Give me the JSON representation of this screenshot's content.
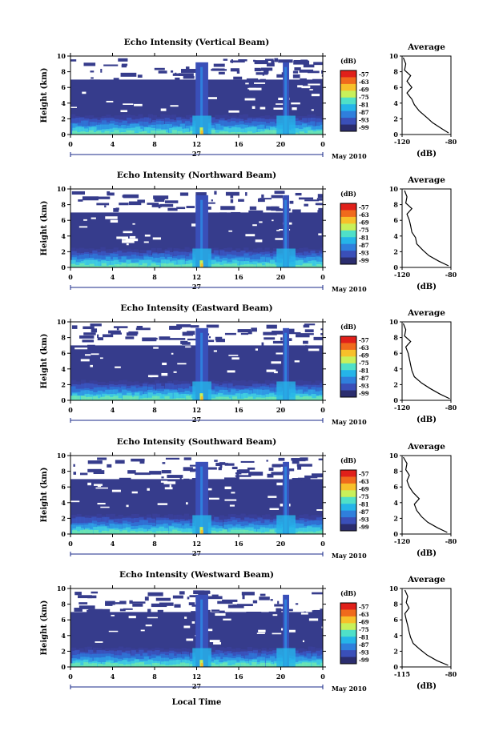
{
  "figure": {
    "x_label": "Local Time",
    "date_label": "May 2010",
    "day_label": "27",
    "y_label": "Height (km)",
    "colorbar_unit": "(dB)",
    "average_title": "Average",
    "average_xlabel": "(dB)"
  },
  "chart_data": [
    {
      "type": "heatmap",
      "title": "Echo Intensity (Vertical Beam)",
      "x": {
        "ticks": [
          "0",
          "4",
          "8",
          "12",
          "16",
          "20",
          "0"
        ],
        "range_hours": [
          0,
          24
        ]
      },
      "y": {
        "ticks": [
          "0",
          "2",
          "4",
          "6",
          "8",
          "10"
        ],
        "range_km": [
          0,
          10
        ]
      },
      "colorbar": {
        "levels": [
          "-57",
          "-63",
          "-69",
          "-75",
          "-81",
          "-87",
          "-93",
          "-99"
        ],
        "colors": [
          "#2b2d6e",
          "#3a4fb8",
          "#2f7fdc",
          "#25b4e8",
          "#4fe0c8",
          "#c8f05a",
          "#f7c02a",
          "#f06a1c",
          "#e0201a"
        ]
      },
      "average": {
        "x_ticks": [
          "-120",
          "-80"
        ],
        "xlim": [
          -120,
          -80
        ],
        "y_ticks": [
          "0",
          "2",
          "4",
          "6",
          "8",
          "10"
        ],
        "profile": [
          [
            -82,
            0.2
          ],
          [
            -88,
            0.8
          ],
          [
            -95,
            1.5
          ],
          [
            -100,
            2.2
          ],
          [
            -106,
            3.0
          ],
          [
            -110,
            3.8
          ],
          [
            -112,
            4.5
          ],
          [
            -116,
            5.3
          ],
          [
            -112,
            6.0
          ],
          [
            -116,
            6.8
          ],
          [
            -113,
            7.5
          ],
          [
            -118,
            8.2
          ],
          [
            -117,
            9.0
          ],
          [
            -119,
            9.8
          ]
        ]
      }
    },
    {
      "type": "heatmap",
      "title": "Echo Intensity (Northward Beam)",
      "x": {
        "ticks": [
          "0",
          "4",
          "8",
          "12",
          "16",
          "20",
          "0"
        ],
        "range_hours": [
          0,
          24
        ]
      },
      "y": {
        "ticks": [
          "0",
          "2",
          "4",
          "6",
          "8",
          "10"
        ],
        "range_km": [
          0,
          10
        ]
      },
      "colorbar": {
        "levels": [
          "-57",
          "-63",
          "-69",
          "-75",
          "-81",
          "-87",
          "-93",
          "-99"
        ],
        "colors": [
          "#2b2d6e",
          "#3a4fb8",
          "#2f7fdc",
          "#25b4e8",
          "#4fe0c8",
          "#c8f05a",
          "#f7c02a",
          "#f06a1c",
          "#e0201a"
        ]
      },
      "average": {
        "x_ticks": [
          "-120",
          "-80"
        ],
        "xlim": [
          -120,
          -80
        ],
        "y_ticks": [
          "0",
          "2",
          "4",
          "6",
          "8",
          "10"
        ],
        "profile": [
          [
            -82,
            0.2
          ],
          [
            -90,
            0.8
          ],
          [
            -98,
            1.5
          ],
          [
            -103,
            2.2
          ],
          [
            -108,
            3.0
          ],
          [
            -109,
            3.8
          ],
          [
            -112,
            4.5
          ],
          [
            -113,
            5.3
          ],
          [
            -114,
            6.0
          ],
          [
            -116,
            6.8
          ],
          [
            -112,
            7.5
          ],
          [
            -117,
            8.2
          ],
          [
            -116,
            9.0
          ],
          [
            -118,
            9.8
          ]
        ]
      }
    },
    {
      "type": "heatmap",
      "title": "Echo Intensity (Eastward Beam)",
      "x": {
        "ticks": [
          "0",
          "4",
          "8",
          "12",
          "16",
          "20",
          "0"
        ],
        "range_hours": [
          0,
          24
        ]
      },
      "y": {
        "ticks": [
          "0",
          "2",
          "4",
          "6",
          "8",
          "10"
        ],
        "range_km": [
          0,
          10
        ]
      },
      "colorbar": {
        "levels": [
          "-57",
          "-63",
          "-69",
          "-75",
          "-81",
          "-87",
          "-93",
          "-99"
        ],
        "colors": [
          "#2b2d6e",
          "#3a4fb8",
          "#2f7fdc",
          "#25b4e8",
          "#4fe0c8",
          "#c8f05a",
          "#f7c02a",
          "#f06a1c",
          "#e0201a"
        ]
      },
      "average": {
        "x_ticks": [
          "-120",
          "-80"
        ],
        "xlim": [
          -120,
          -80
        ],
        "y_ticks": [
          "0",
          "2",
          "4",
          "6",
          "8",
          "10"
        ],
        "profile": [
          [
            -81,
            0.2
          ],
          [
            -89,
            0.8
          ],
          [
            -97,
            1.5
          ],
          [
            -104,
            2.2
          ],
          [
            -110,
            3.0
          ],
          [
            -112,
            3.8
          ],
          [
            -113,
            4.5
          ],
          [
            -114,
            5.3
          ],
          [
            -115,
            6.0
          ],
          [
            -117,
            6.8
          ],
          [
            -113,
            7.5
          ],
          [
            -118,
            8.2
          ],
          [
            -117,
            9.0
          ],
          [
            -119,
            9.8
          ]
        ]
      }
    },
    {
      "type": "heatmap",
      "title": "Echo Intensity (Southward Beam)",
      "x": {
        "ticks": [
          "0",
          "4",
          "8",
          "12",
          "16",
          "20",
          "0"
        ],
        "range_hours": [
          0,
          24
        ]
      },
      "y": {
        "ticks": [
          "0",
          "2",
          "4",
          "6",
          "8",
          "10"
        ],
        "range_km": [
          0,
          10
        ]
      },
      "colorbar": {
        "levels": [
          "-57",
          "-63",
          "-69",
          "-75",
          "-81",
          "-87",
          "-93",
          "-99"
        ],
        "colors": [
          "#2b2d6e",
          "#3a4fb8",
          "#2f7fdc",
          "#25b4e8",
          "#4fe0c8",
          "#c8f05a",
          "#f7c02a",
          "#f06a1c",
          "#e0201a"
        ]
      },
      "average": {
        "x_ticks": [
          "-120",
          "-80"
        ],
        "xlim": [
          -120,
          -80
        ],
        "y_ticks": [
          "0",
          "2",
          "4",
          "6",
          "8",
          "10"
        ],
        "profile": [
          [
            -83,
            0.2
          ],
          [
            -91,
            0.8
          ],
          [
            -99,
            1.5
          ],
          [
            -104,
            2.2
          ],
          [
            -108,
            3.0
          ],
          [
            -110,
            3.8
          ],
          [
            -106,
            4.5
          ],
          [
            -111,
            5.3
          ],
          [
            -114,
            6.0
          ],
          [
            -116,
            6.8
          ],
          [
            -114,
            7.5
          ],
          [
            -117,
            8.2
          ],
          [
            -116,
            9.0
          ],
          [
            -119,
            9.8
          ]
        ]
      }
    },
    {
      "type": "heatmap",
      "title": "Echo Intensity (Westward Beam)",
      "x": {
        "ticks": [
          "0",
          "4",
          "8",
          "12",
          "16",
          "20",
          "0"
        ],
        "range_hours": [
          0,
          24
        ]
      },
      "y": {
        "ticks": [
          "0",
          "2",
          "4",
          "6",
          "8",
          "10"
        ],
        "range_km": [
          0,
          10
        ]
      },
      "colorbar": {
        "levels": [
          "-57",
          "-63",
          "-69",
          "-75",
          "-81",
          "-87",
          "-93",
          "-99"
        ],
        "colors": [
          "#2b2d6e",
          "#3a4fb8",
          "#2f7fdc",
          "#25b4e8",
          "#4fe0c8",
          "#c8f05a",
          "#f7c02a",
          "#f06a1c",
          "#e0201a"
        ]
      },
      "average": {
        "x_ticks": [
          "-115",
          "-80"
        ],
        "xlim": [
          -115,
          -80
        ],
        "y_ticks": [
          "0",
          "2",
          "4",
          "6",
          "8",
          "10"
        ],
        "profile": [
          [
            -82,
            0.2
          ],
          [
            -90,
            0.8
          ],
          [
            -97,
            1.5
          ],
          [
            -102,
            2.2
          ],
          [
            -107,
            3.0
          ],
          [
            -109,
            3.8
          ],
          [
            -110,
            4.5
          ],
          [
            -111,
            5.3
          ],
          [
            -112,
            6.0
          ],
          [
            -113,
            6.8
          ],
          [
            -110,
            7.5
          ],
          [
            -112,
            8.2
          ],
          [
            -111,
            9.0
          ],
          [
            -113,
            9.8
          ]
        ]
      }
    }
  ]
}
